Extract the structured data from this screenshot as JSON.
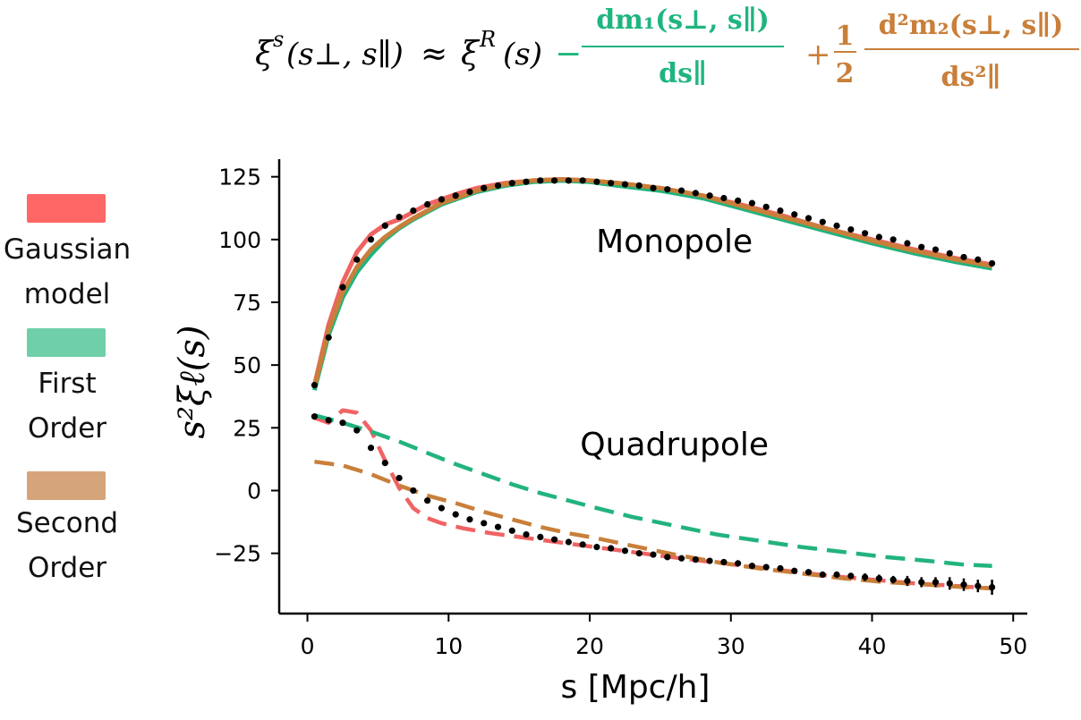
{
  "equation": {
    "lhs": "ξ",
    "lhs_sup": "s",
    "lhs_args": "(s⊥, s∥)",
    "approx": "≈",
    "xiR": "ξ",
    "xiR_sup": "R",
    "xiR_arg": "(s)",
    "minus": "−",
    "first_num": "dm₁(s⊥, s∥)",
    "first_den": "ds∥",
    "plus": "+",
    "half_num": "1",
    "half_den": "2",
    "second_num": "d²m₂(s⊥, s∥)",
    "second_den": "ds²∥",
    "color_first": "#1fb57f",
    "color_second": "#c97f3a"
  },
  "legend": [
    {
      "label_lines": [
        "Gaussian",
        "model"
      ],
      "color": "#ff6666"
    },
    {
      "label_lines": [
        "First",
        "Order"
      ],
      "color": "#6ecfa8"
    },
    {
      "label_lines": [
        "Second",
        "Order"
      ],
      "color": "#d6a47a"
    }
  ],
  "chart_data": {
    "type": "line",
    "xlabel": "s [Mpc/h]",
    "ylabel": "s²ξℓ(s)",
    "xlim": [
      -2,
      51
    ],
    "ylim": [
      -49,
      132
    ],
    "xticks": [
      0,
      10,
      20,
      30,
      40,
      50
    ],
    "yticks": [
      -25,
      0,
      25,
      50,
      75,
      100,
      125
    ],
    "annotations": [
      {
        "text": "Monopole",
        "x": 26,
        "y": 95
      },
      {
        "text": "Quadrupole",
        "x": 26,
        "y": 14
      }
    ],
    "colors": {
      "gaussian": "#f06363",
      "first": "#22b37d",
      "second": "#c97f3a",
      "data": "#000000"
    },
    "series": [
      {
        "name": "Monopole Gaussian model",
        "style": "solid",
        "color_key": "gaussian",
        "x": [
          0.5,
          1.5,
          2.5,
          3.5,
          4.5,
          5.5,
          6.5,
          7.5,
          8.5,
          9.5,
          10.5,
          12,
          14,
          16,
          18,
          20,
          22,
          25,
          28,
          31,
          34,
          37,
          40,
          43,
          46,
          48.5
        ],
        "y": [
          42,
          66,
          83,
          95,
          102,
          106,
          108,
          111,
          114,
          116,
          118,
          120.5,
          122.5,
          123.5,
          124,
          123.5,
          122.5,
          120.5,
          117.5,
          113.5,
          109,
          104,
          100,
          96,
          92.5,
          90
        ]
      },
      {
        "name": "Monopole First order",
        "style": "solid",
        "color_key": "first",
        "x": [
          0.5,
          1.5,
          2.5,
          3.5,
          4.5,
          5.5,
          6.5,
          7.5,
          8.5,
          9.5,
          10.5,
          12,
          14,
          16,
          18,
          20,
          22,
          25,
          28,
          31,
          34,
          37,
          40,
          43,
          46,
          48.5
        ],
        "y": [
          40,
          62,
          77,
          87,
          94,
          100,
          104.5,
          108,
          111,
          114,
          116,
          119,
          121.5,
          123,
          123.5,
          123,
          121.5,
          119.5,
          116.5,
          112,
          107.5,
          103,
          98.5,
          94.5,
          91,
          88.5
        ]
      },
      {
        "name": "Monopole Second order",
        "style": "solid",
        "color_key": "second",
        "x": [
          0.5,
          1.5,
          2.5,
          3.5,
          4.5,
          5.5,
          6.5,
          7.5,
          8.5,
          9.5,
          10.5,
          12,
          14,
          16,
          18,
          20,
          22,
          25,
          28,
          31,
          34,
          37,
          40,
          43,
          46,
          48.5
        ],
        "y": [
          41,
          64,
          79,
          89,
          96,
          101,
          105,
          108.5,
          111.5,
          114.5,
          116.5,
          119.5,
          122,
          123.5,
          124,
          123.5,
          122.5,
          120.5,
          117.5,
          113,
          108.5,
          104,
          99.5,
          95.5,
          92,
          89.5
        ]
      },
      {
        "name": "Quadrupole Gaussian model",
        "style": "dashed",
        "color_key": "gaussian",
        "x": [
          0.5,
          1.5,
          2.5,
          3.5,
          4.5,
          5.5,
          6.5,
          7.5,
          8.5,
          9.5,
          11,
          13,
          15,
          17,
          19,
          21,
          23,
          25,
          28,
          31,
          34,
          37,
          40,
          43,
          46,
          48.5
        ],
        "y": [
          29,
          27,
          32,
          31,
          24,
          12,
          1,
          -7,
          -11,
          -13,
          -15,
          -17,
          -18.5,
          -20,
          -21.5,
          -23,
          -24.5,
          -26,
          -28,
          -30,
          -32,
          -34,
          -35.5,
          -37,
          -38,
          -39
        ]
      },
      {
        "name": "Quadrupole First order",
        "style": "dashed",
        "color_key": "first",
        "x": [
          0.5,
          2.5,
          4.5,
          6.5,
          8.5,
          10.5,
          12.5,
          14.5,
          16.5,
          18.5,
          20.5,
          23,
          26,
          29,
          32,
          35,
          38,
          41,
          44,
          46.5,
          48.5
        ],
        "y": [
          30,
          27,
          23.5,
          19.5,
          15,
          10.5,
          6.5,
          2.5,
          -1,
          -4,
          -7,
          -10.5,
          -14,
          -17.5,
          -20,
          -22.5,
          -24.5,
          -26.5,
          -28,
          -29.5,
          -30
        ]
      },
      {
        "name": "Quadrupole Second order",
        "style": "dashed",
        "color_key": "second",
        "x": [
          0.5,
          2.5,
          4.5,
          6.5,
          8.5,
          10.5,
          12.5,
          14.5,
          16.5,
          18.5,
          20.5,
          23,
          26,
          29,
          32,
          35,
          38,
          41,
          44,
          46.5,
          48.5
        ],
        "y": [
          11.5,
          10,
          6.5,
          2,
          -2,
          -5,
          -8.5,
          -11.5,
          -14.5,
          -17,
          -19,
          -22,
          -25.5,
          -28.5,
          -31,
          -33,
          -35,
          -36.5,
          -37.5,
          -38.5,
          -39
        ]
      },
      {
        "name": "Monopole data",
        "style": "dots",
        "color_key": "data",
        "x": [
          0.5,
          1.5,
          2.5,
          3.5,
          4.5,
          5.5,
          6.5,
          7.5,
          8.5,
          9.5,
          10.5,
          11.5,
          12.5,
          13.5,
          14.5,
          15.5,
          16.5,
          17.5,
          18.5,
          19.5,
          20.5,
          21.5,
          22.5,
          23.5,
          24.5,
          25.5,
          26.5,
          27.5,
          28.5,
          29.5,
          30.5,
          31.5,
          32.5,
          33.5,
          34.5,
          35.5,
          36.5,
          37.5,
          38.5,
          39.5,
          40.5,
          41.5,
          42.5,
          43.5,
          44.5,
          45.5,
          46.5,
          47.5,
          48.5
        ],
        "y": [
          42,
          61,
          81,
          92,
          100,
          105.5,
          109,
          111.5,
          114,
          116,
          117.5,
          119,
          120.5,
          121.5,
          122.5,
          123,
          123.5,
          123.5,
          123.5,
          123.5,
          123,
          122.5,
          122,
          121.5,
          120.5,
          120,
          119.5,
          118.5,
          117.5,
          116.5,
          115.5,
          114.5,
          113,
          111.5,
          110,
          108.5,
          107,
          105.5,
          104,
          102.5,
          101,
          100,
          98.5,
          97,
          96,
          94.5,
          93,
          92,
          90.5
        ]
      },
      {
        "name": "Quadrupole data",
        "style": "dots",
        "color_key": "data",
        "x": [
          0.5,
          1.5,
          2.5,
          3.5,
          4.5,
          5.5,
          6.5,
          7.5,
          8.5,
          9.5,
          10.5,
          11.5,
          12.5,
          13.5,
          14.5,
          15.5,
          16.5,
          17.5,
          18.5,
          19.5,
          20.5,
          21.5,
          22.5,
          23.5,
          24.5,
          25.5,
          26.5,
          27.5,
          28.5,
          29.5,
          30.5,
          31.5,
          32.5,
          33.5,
          34.5,
          35.5,
          36.5,
          37.5,
          38.5,
          39.5,
          40.5,
          41.5,
          42.5,
          43.5,
          44.5,
          45.5,
          46.5,
          47.5,
          48.5
        ],
        "y": [
          29.5,
          28,
          27,
          24,
          17,
          11,
          5,
          0,
          -4,
          -7,
          -9.5,
          -11.5,
          -13,
          -14.5,
          -16,
          -17.5,
          -18.5,
          -19.5,
          -20.5,
          -21.5,
          -22.5,
          -23,
          -24,
          -25,
          -25.5,
          -26.5,
          -27,
          -27.5,
          -28,
          -28.5,
          -29,
          -30,
          -30.5,
          -31,
          -32,
          -32.5,
          -33.5,
          -33.5,
          -34,
          -34.5,
          -35,
          -35.5,
          -36,
          -36.5,
          -36.5,
          -37,
          -37.5,
          -38,
          -38.5
        ],
        "err": [
          0,
          0,
          0,
          0,
          0,
          0,
          0,
          0,
          0,
          0,
          0,
          0,
          0,
          0,
          0,
          0,
          0,
          0,
          0,
          0,
          0,
          0,
          0,
          0,
          0,
          0,
          0,
          0,
          0,
          0,
          0,
          0,
          0,
          0,
          0.5,
          0.5,
          1,
          1,
          1,
          1.5,
          1.5,
          1.5,
          2,
          2,
          2,
          2.5,
          2.5,
          2.5,
          3
        ]
      }
    ]
  }
}
